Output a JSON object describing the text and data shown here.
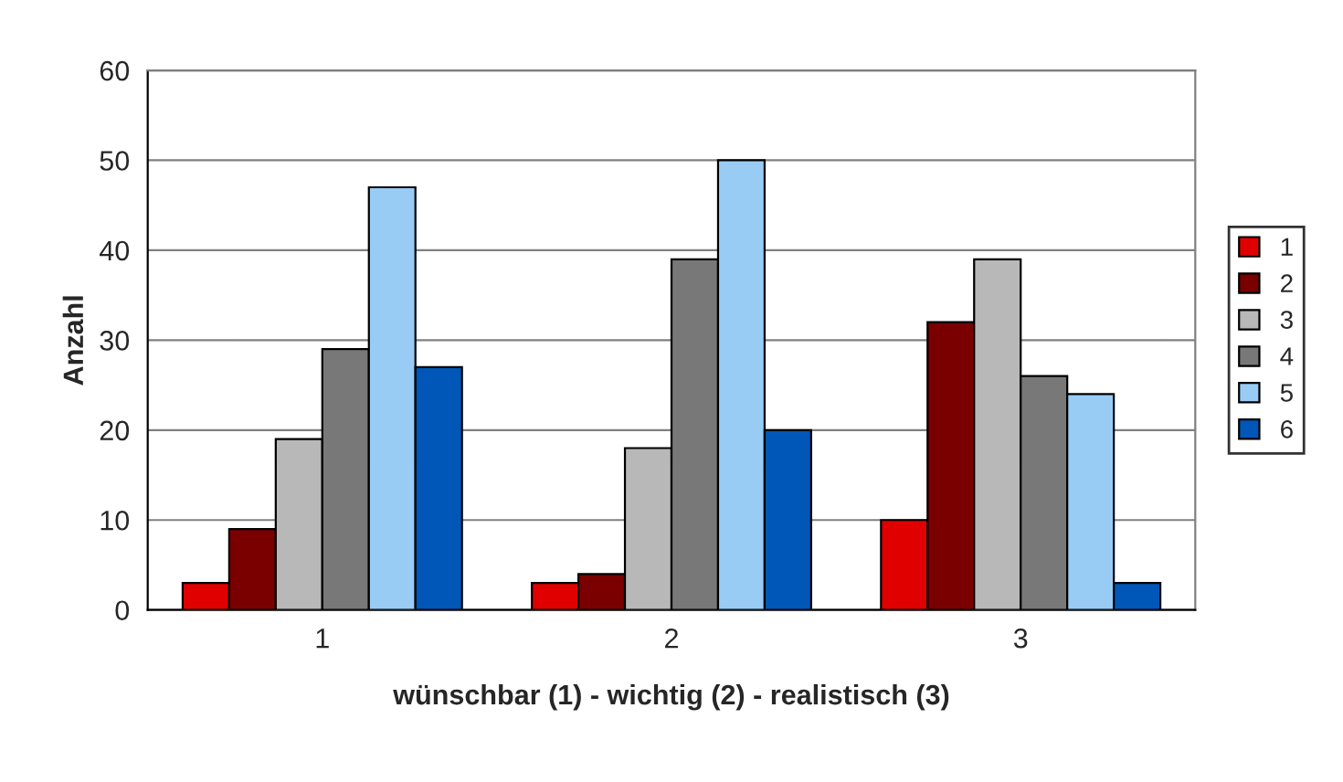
{
  "chart_data": {
    "type": "bar",
    "xlabel": "wünschbar (1) - wichtig (2) - realistisch (3)",
    "ylabel": "Anzahl",
    "categories": [
      "1",
      "2",
      "3"
    ],
    "series": [
      {
        "name": "1",
        "color": "#e00000",
        "values": [
          3,
          3,
          10
        ]
      },
      {
        "name": "2",
        "color": "#7a0000",
        "values": [
          9,
          4,
          32
        ]
      },
      {
        "name": "3",
        "color": "#b8b8b8",
        "values": [
          19,
          18,
          39
        ]
      },
      {
        "name": "4",
        "color": "#787878",
        "values": [
          29,
          39,
          26
        ]
      },
      {
        "name": "5",
        "color": "#99ccf5",
        "values": [
          47,
          50,
          24
        ]
      },
      {
        "name": "6",
        "color": "#0057b8",
        "values": [
          27,
          20,
          3
        ]
      }
    ],
    "ylim": [
      0,
      60
    ],
    "yticks": [
      0,
      10,
      20,
      30,
      40,
      50,
      60
    ],
    "grid": "y",
    "legend": "right"
  }
}
